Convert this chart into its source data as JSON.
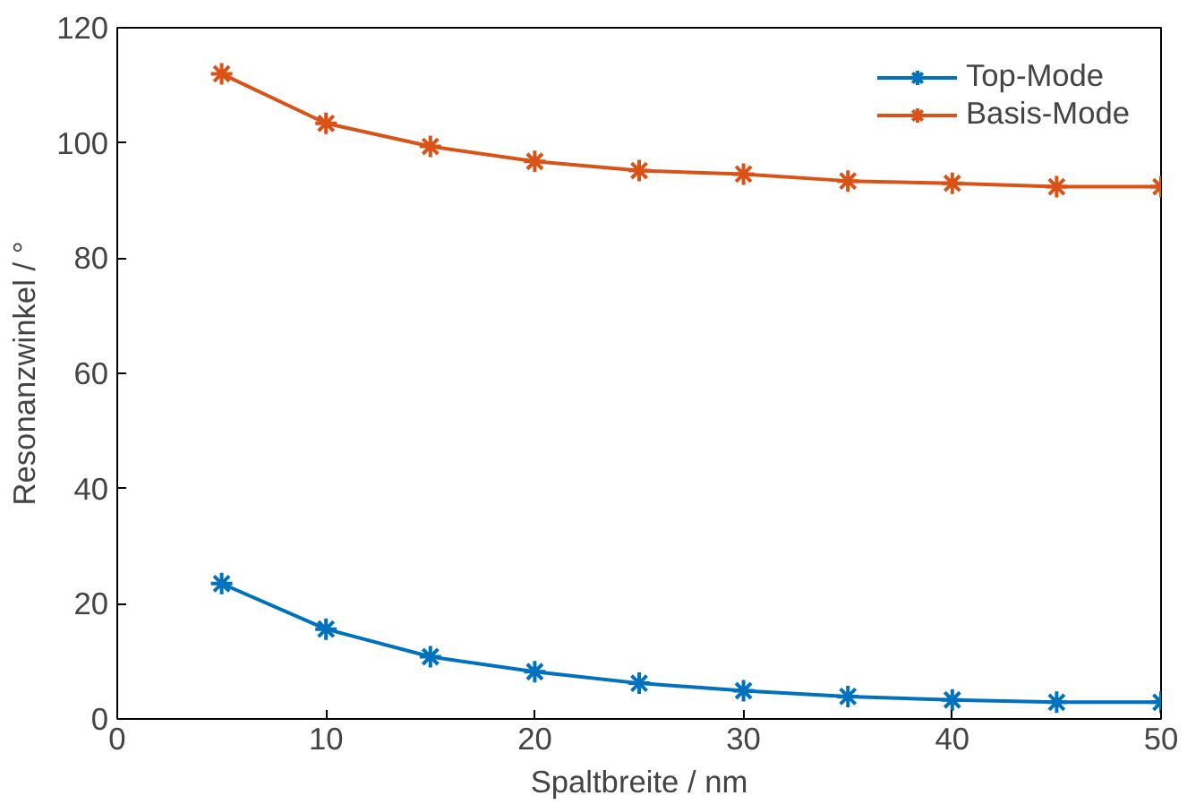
{
  "chart_data": {
    "type": "line",
    "xlabel": "Spaltbreite / nm",
    "ylabel": "Resonanzwinkel / °",
    "x": [
      5,
      10,
      15,
      20,
      25,
      30,
      35,
      40,
      45,
      50
    ],
    "series": [
      {
        "name": "Top-Mode",
        "color": "#0072bd",
        "values": [
          23.5,
          15.6,
          10.8,
          8.2,
          6.2,
          4.9,
          3.9,
          3.3,
          2.9,
          2.9
        ]
      },
      {
        "name": "Basis-Mode",
        "color": "#d95319",
        "values": [
          112,
          103.4,
          99.4,
          96.8,
          95.2,
          94.6,
          93.4,
          93,
          92.4,
          92.4
        ]
      }
    ],
    "xlim": [
      0,
      50
    ],
    "xticks": [
      0,
      10,
      20,
      30,
      40,
      50
    ],
    "ylim": [
      0,
      120
    ],
    "yticks": [
      0,
      20,
      40,
      60,
      80,
      100,
      120
    ],
    "grid": false,
    "legend": "top right",
    "marker": "cross",
    "line_style": "solid"
  }
}
